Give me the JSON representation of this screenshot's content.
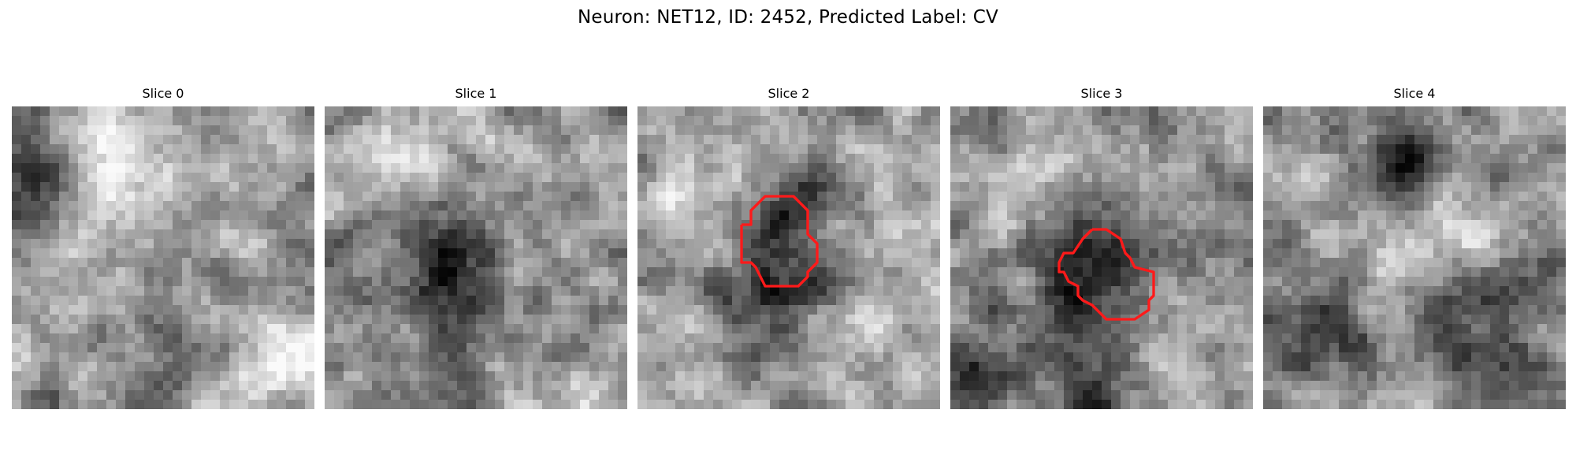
{
  "title": "Neuron: NET12, ID: 2452, Predicted Label: CV",
  "panels": [
    {
      "title": "Slice 0",
      "has_contour": false
    },
    {
      "title": "Slice 1",
      "has_contour": false
    },
    {
      "title": "Slice 2",
      "has_contour": true
    },
    {
      "title": "Slice 3",
      "has_contour": true
    },
    {
      "title": "Slice 4",
      "has_contour": false
    }
  ],
  "colors": {
    "contour": "#ff1a1a",
    "colormap": "grayscale"
  }
}
